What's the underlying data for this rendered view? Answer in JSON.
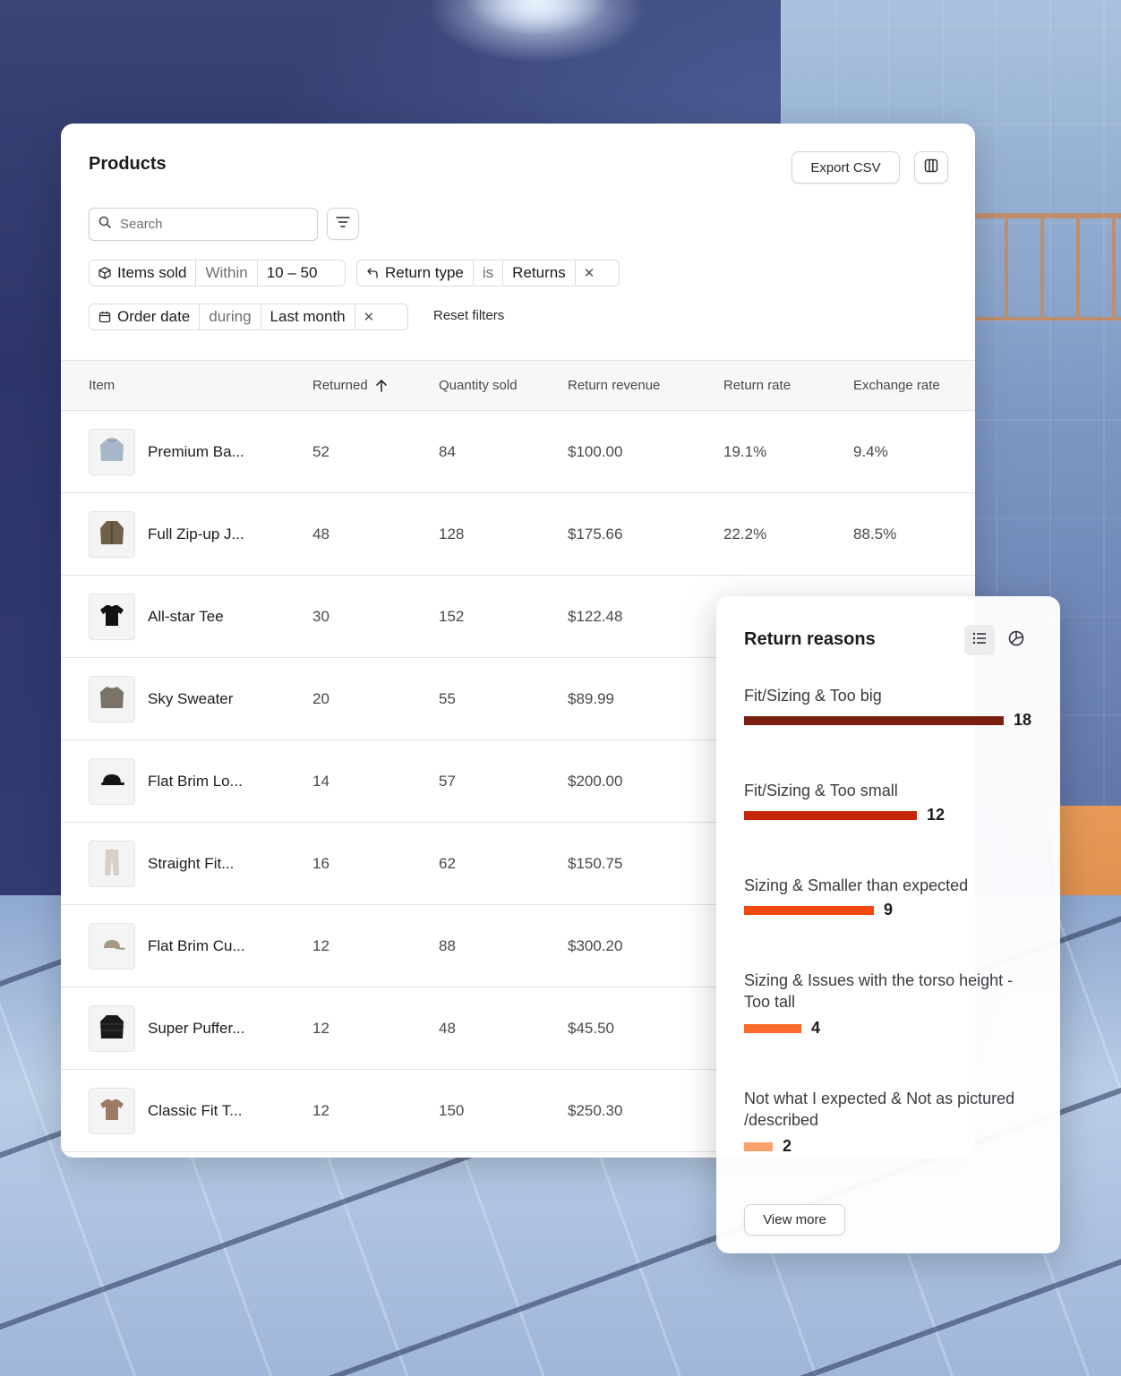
{
  "products": {
    "title": "Products",
    "export_label": "Export CSV",
    "search_placeholder": "Search",
    "filters": [
      {
        "field": "Items sold",
        "operator": "Within",
        "value": "10 – 50",
        "icon": "box-icon"
      },
      {
        "field": "Return type",
        "operator": "is",
        "value": "Returns",
        "icon": "return-arrow-icon"
      },
      {
        "field": "Order date",
        "operator": "during",
        "value": "Last month",
        "icon": "calendar-icon"
      }
    ],
    "reset_label": "Reset filters",
    "columns": [
      "Item",
      "Returned",
      "Quantity sold",
      "Return revenue",
      "Return rate",
      "Exchange rate"
    ],
    "sort_indicator": "arrow-up-icon",
    "rows": [
      {
        "item": "Premium Ba...",
        "returned": "52",
        "qty": "84",
        "revenue": "$100.00",
        "return_rate": "19.1%",
        "exchange_rate": "9.4%",
        "thumb": "hoodie-icon",
        "color": "#a7b6c9"
      },
      {
        "item": "Full Zip-up J...",
        "returned": "48",
        "qty": "128",
        "revenue": "$175.66",
        "return_rate": "22.2%",
        "exchange_rate": "88.5%",
        "thumb": "jacket-icon",
        "color": "#6f6149"
      },
      {
        "item": "All-star Tee",
        "returned": "30",
        "qty": "152",
        "revenue": "$122.48",
        "return_rate": "",
        "exchange_rate": "",
        "thumb": "tshirt-icon",
        "color": "#111111"
      },
      {
        "item": "Sky Sweater",
        "returned": "20",
        "qty": "55",
        "revenue": "$89.99",
        "return_rate": "",
        "exchange_rate": "",
        "thumb": "sweater-icon",
        "color": "#7c7368"
      },
      {
        "item": "Flat Brim Lo...",
        "returned": "14",
        "qty": "57",
        "revenue": "$200.00",
        "return_rate": "",
        "exchange_rate": "",
        "thumb": "cap-icon",
        "color": "#151515"
      },
      {
        "item": "Straight Fit...",
        "returned": "16",
        "qty": "62",
        "revenue": "$150.75",
        "return_rate": "",
        "exchange_rate": "",
        "thumb": "pants-icon",
        "color": "#d8cfc4"
      },
      {
        "item": "Flat Brim Cu...",
        "returned": "12",
        "qty": "88",
        "revenue": "$300.20",
        "return_rate": "",
        "exchange_rate": "",
        "thumb": "cap-icon",
        "color": "#a59b82"
      },
      {
        "item": "Super Puffer...",
        "returned": "12",
        "qty": "48",
        "revenue": "$45.50",
        "return_rate": "",
        "exchange_rate": "",
        "thumb": "puffer-icon",
        "color": "#1a1a1a"
      },
      {
        "item": "Classic Fit T...",
        "returned": "12",
        "qty": "150",
        "revenue": "$250.30",
        "return_rate": "",
        "exchange_rate": "",
        "thumb": "tshirt-icon",
        "color": "#9b7a66"
      }
    ]
  },
  "return_reasons": {
    "title": "Return reasons",
    "view_more_label": "View more",
    "items": [
      {
        "label": "Fit/Sizing & Too big",
        "count": 18,
        "color": "#7a1f0e"
      },
      {
        "label": "Fit/Sizing & Too small",
        "count": 12,
        "color": "#c4260a"
      },
      {
        "label": "Sizing & Smaller than expected",
        "count": 9,
        "color": "#f0480f"
      },
      {
        "label": "Sizing & Issues with the torso height - Too tall",
        "count": 4,
        "color": "#f86a2a"
      },
      {
        "label": "Not what I expected & Not as pictured /described",
        "count": 2,
        "color": "#fca06e"
      }
    ]
  }
}
